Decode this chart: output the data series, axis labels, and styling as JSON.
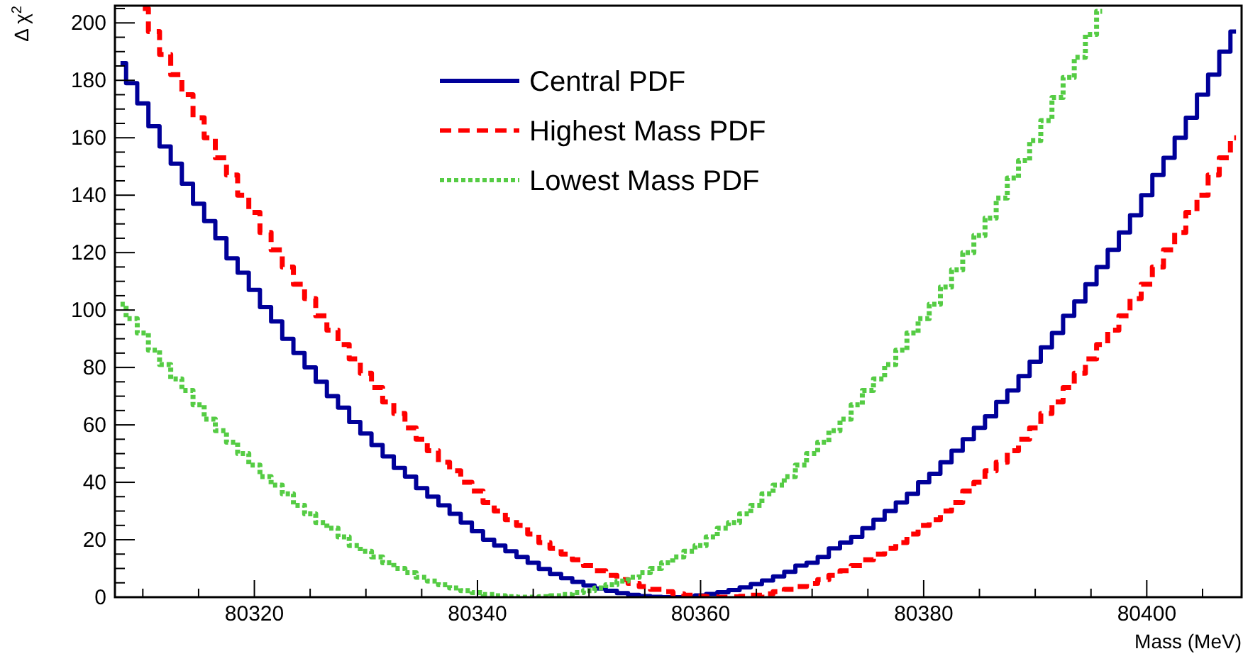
{
  "chart_data": {
    "type": "step",
    "xlabel": "Mass (MeV)",
    "ylabel": "Δ χ$^{2}$",
    "xlim": [
      80307.5,
      80408.5
    ],
    "xticks": [
      {
        "value": 80310,
        "label": null
      },
      {
        "value": 80315,
        "label": null
      },
      80320,
      {
        "value": 80325,
        "label": null
      },
      {
        "value": 80330,
        "label": null
      },
      {
        "value": 80335,
        "label": null
      },
      80340,
      {
        "value": 80345,
        "label": null
      },
      {
        "value": 80350,
        "label": null
      },
      {
        "value": 80355,
        "label": null
      },
      80360,
      {
        "value": 80365,
        "label": null
      },
      {
        "value": 80370,
        "label": null
      },
      {
        "value": 80375,
        "label": null
      },
      80380,
      {
        "value": 80385,
        "label": null
      },
      {
        "value": 80390,
        "label": null
      },
      {
        "value": 80395,
        "label": null
      },
      80400,
      {
        "value": 80405,
        "label": null
      }
    ],
    "ylim": [
      0,
      206
    ],
    "yticks": [
      0,
      {
        "value": 5,
        "label": null
      },
      {
        "value": 10,
        "label": null
      },
      {
        "value": 15,
        "label": null
      },
      20,
      {
        "value": 25,
        "label": null
      },
      {
        "value": 30,
        "label": null
      },
      {
        "value": 35,
        "label": null
      },
      40,
      {
        "value": 45,
        "label": null
      },
      {
        "value": 50,
        "label": null
      },
      {
        "value": 55,
        "label": null
      },
      60,
      {
        "value": 65,
        "label": null
      },
      {
        "value": 70,
        "label": null
      },
      {
        "value": 75,
        "label": null
      },
      80,
      {
        "value": 85,
        "label": null
      },
      {
        "value": 90,
        "label": null
      },
      {
        "value": 95,
        "label": null
      },
      100,
      {
        "value": 105,
        "label": null
      },
      {
        "value": 110,
        "label": null
      },
      {
        "value": 115,
        "label": null
      },
      120,
      {
        "value": 125,
        "label": null
      },
      {
        "value": 130,
        "label": null
      },
      {
        "value": 135,
        "label": null
      },
      140,
      {
        "value": 145,
        "label": null
      },
      {
        "value": 150,
        "label": null
      },
      {
        "value": 155,
        "label": null
      },
      160,
      {
        "value": 165,
        "label": null
      },
      {
        "value": 170,
        "label": null
      },
      {
        "value": 175,
        "label": null
      },
      180,
      {
        "value": 185,
        "label": null
      },
      {
        "value": 190,
        "label": null
      },
      {
        "value": 195,
        "label": null
      },
      200,
      {
        "value": 205,
        "label": null
      }
    ],
    "x": [
      80308,
      80309,
      80310,
      80311,
      80312,
      80313,
      80314,
      80315,
      80316,
      80317,
      80318,
      80319,
      80320,
      80321,
      80322,
      80323,
      80324,
      80325,
      80326,
      80327,
      80328,
      80329,
      80330,
      80331,
      80332,
      80333,
      80334,
      80335,
      80336,
      80337,
      80338,
      80339,
      80340,
      80341,
      80342,
      80343,
      80344,
      80345,
      80346,
      80347,
      80348,
      80349,
      80350,
      80351,
      80352,
      80353,
      80354,
      80355,
      80356,
      80357,
      80358,
      80359,
      80360,
      80361,
      80362,
      80363,
      80364,
      80365,
      80366,
      80367,
      80368,
      80369,
      80370,
      80371,
      80372,
      80373,
      80374,
      80375,
      80376,
      80377,
      80378,
      80379,
      80380,
      80381,
      80382,
      80383,
      80384,
      80385,
      80386,
      80387,
      80388,
      80389,
      80390,
      80391,
      80392,
      80393,
      80394,
      80395,
      80396,
      80397,
      80398,
      80399,
      80400,
      80401,
      80402,
      80403,
      80404,
      80405,
      80406,
      80407,
      80408
    ],
    "series": [
      {
        "name": "Central PDF",
        "color": "#000099",
        "line_style": "solid",
        "values": [
          186,
          179,
          172,
          164,
          157,
          151,
          144,
          137,
          131,
          125,
          118,
          113,
          107,
          101,
          96,
          90,
          85,
          80,
          75,
          70,
          66,
          61,
          57,
          53,
          49,
          45,
          42,
          38,
          35,
          32,
          29,
          26,
          23,
          20,
          18,
          16,
          14,
          12,
          9.8,
          8.1,
          6.6,
          5.3,
          4.1,
          3.0,
          2.2,
          1.4,
          0.8,
          0.4,
          0.1,
          0.0,
          0.0,
          0.2,
          0.6,
          1.1,
          1.7,
          2.5,
          3.4,
          4.6,
          5.8,
          7.2,
          8.8,
          11,
          12,
          14,
          17,
          19,
          21,
          24,
          27,
          30,
          33,
          36,
          40,
          43,
          47,
          51,
          55,
          59,
          63,
          68,
          72,
          77,
          82,
          87,
          92,
          98,
          103,
          109,
          115,
          121,
          127,
          133,
          140,
          147,
          153,
          160,
          167,
          175,
          182,
          190,
          197
        ]
      },
      {
        "name": "Highest Mass PDF",
        "color": "#ff0000",
        "line_style": "dashed",
        "values": [
          null,
          null,
          205,
          197,
          189,
          182,
          175,
          167,
          160,
          153,
          147,
          140,
          134,
          127,
          121,
          115,
          109,
          104,
          98,
          93,
          88,
          83,
          78,
          73,
          68,
          64,
          59,
          55,
          51,
          47,
          44,
          40,
          37,
          33,
          30,
          27,
          25,
          22,
          19,
          17,
          15,
          13,
          11,
          9.2,
          7.6,
          6.1,
          4.8,
          3.7,
          2.7,
          1.9,
          1.2,
          0.7,
          0.3,
          0.1,
          0.0,
          0.1,
          0.3,
          0.7,
          1.2,
          1.9,
          2.7,
          3.7,
          4.8,
          6.1,
          7.6,
          9.2,
          11,
          13,
          15,
          17,
          19,
          22,
          25,
          27,
          30,
          33,
          37,
          40,
          44,
          47,
          51,
          55,
          59,
          64,
          68,
          73,
          78,
          83,
          88,
          93,
          98,
          104,
          109,
          115,
          121,
          127,
          134,
          140,
          147,
          153,
          160
        ]
      },
      {
        "name": "Lowest Mass PDF",
        "color": "#55cc44",
        "line_style": "dotted",
        "values": [
          102,
          97,
          92,
          86,
          81,
          76,
          72,
          67,
          62,
          58,
          54,
          50,
          46,
          42,
          39,
          36,
          32,
          29,
          26,
          24,
          21,
          18,
          16,
          14,
          12,
          10,
          8.5,
          6.9,
          5.6,
          4.3,
          3.2,
          2.3,
          1.6,
          0.9,
          0.5,
          0.2,
          0.0,
          0.0,
          0.2,
          0.5,
          0.9,
          1.6,
          2.3,
          3.2,
          4.3,
          5.6,
          6.9,
          8.5,
          10,
          12,
          14,
          16,
          18,
          21,
          24,
          26,
          29,
          32,
          36,
          39,
          42,
          46,
          50,
          54,
          58,
          62,
          67,
          72,
          76,
          81,
          86,
          92,
          97,
          102,
          108,
          114,
          120,
          126,
          132,
          139,
          146,
          152,
          159,
          166,
          174,
          181,
          188,
          196,
          204,
          null,
          null,
          null,
          null,
          null,
          null,
          null,
          null,
          null,
          null,
          null,
          null
        ]
      }
    ],
    "legend": "top",
    "grid": false
  }
}
